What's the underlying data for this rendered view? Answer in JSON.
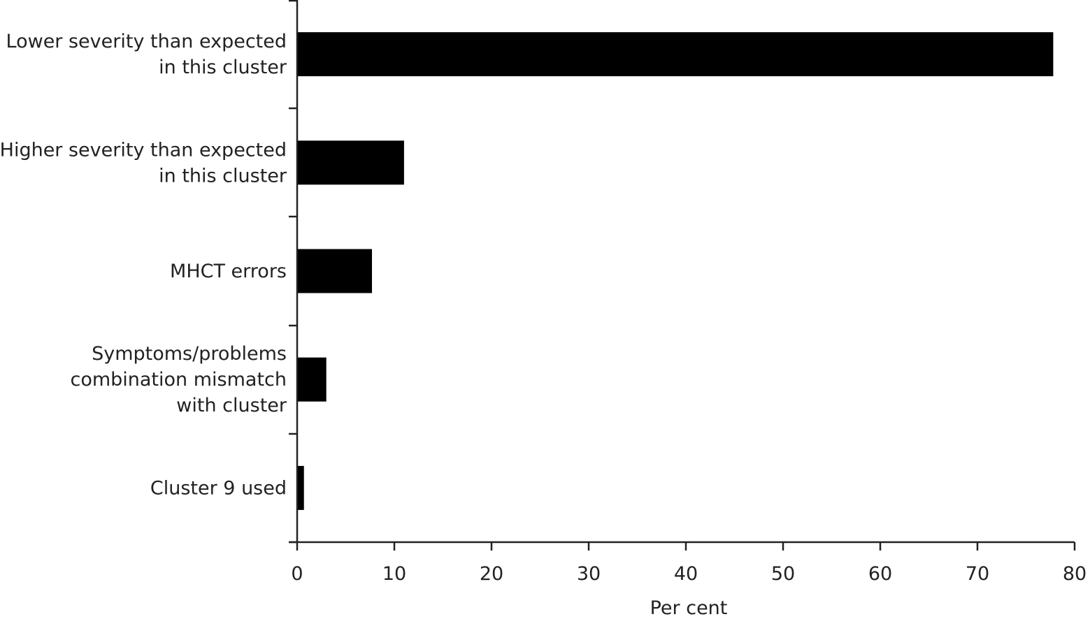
{
  "chart_data": {
    "type": "bar",
    "orientation": "horizontal",
    "title": "",
    "xlabel": "Per cent",
    "ylabel": "",
    "xlim": [
      0,
      80
    ],
    "x_ticks": [
      "0",
      "10",
      "20",
      "30",
      "40",
      "50",
      "60",
      "70",
      "80"
    ],
    "grid": false,
    "bar_color": "#000000",
    "categories": [
      [
        "Lower severity than expected",
        "in this cluster"
      ],
      [
        "Higher severity than expected",
        "in this cluster"
      ],
      [
        "MHCT errors"
      ],
      [
        "Symptoms/problems",
        "combination mismatch",
        "with cluster"
      ],
      [
        "Cluster 9 used"
      ]
    ],
    "values": [
      77.8,
      11.0,
      7.7,
      3.0,
      0.7
    ]
  }
}
